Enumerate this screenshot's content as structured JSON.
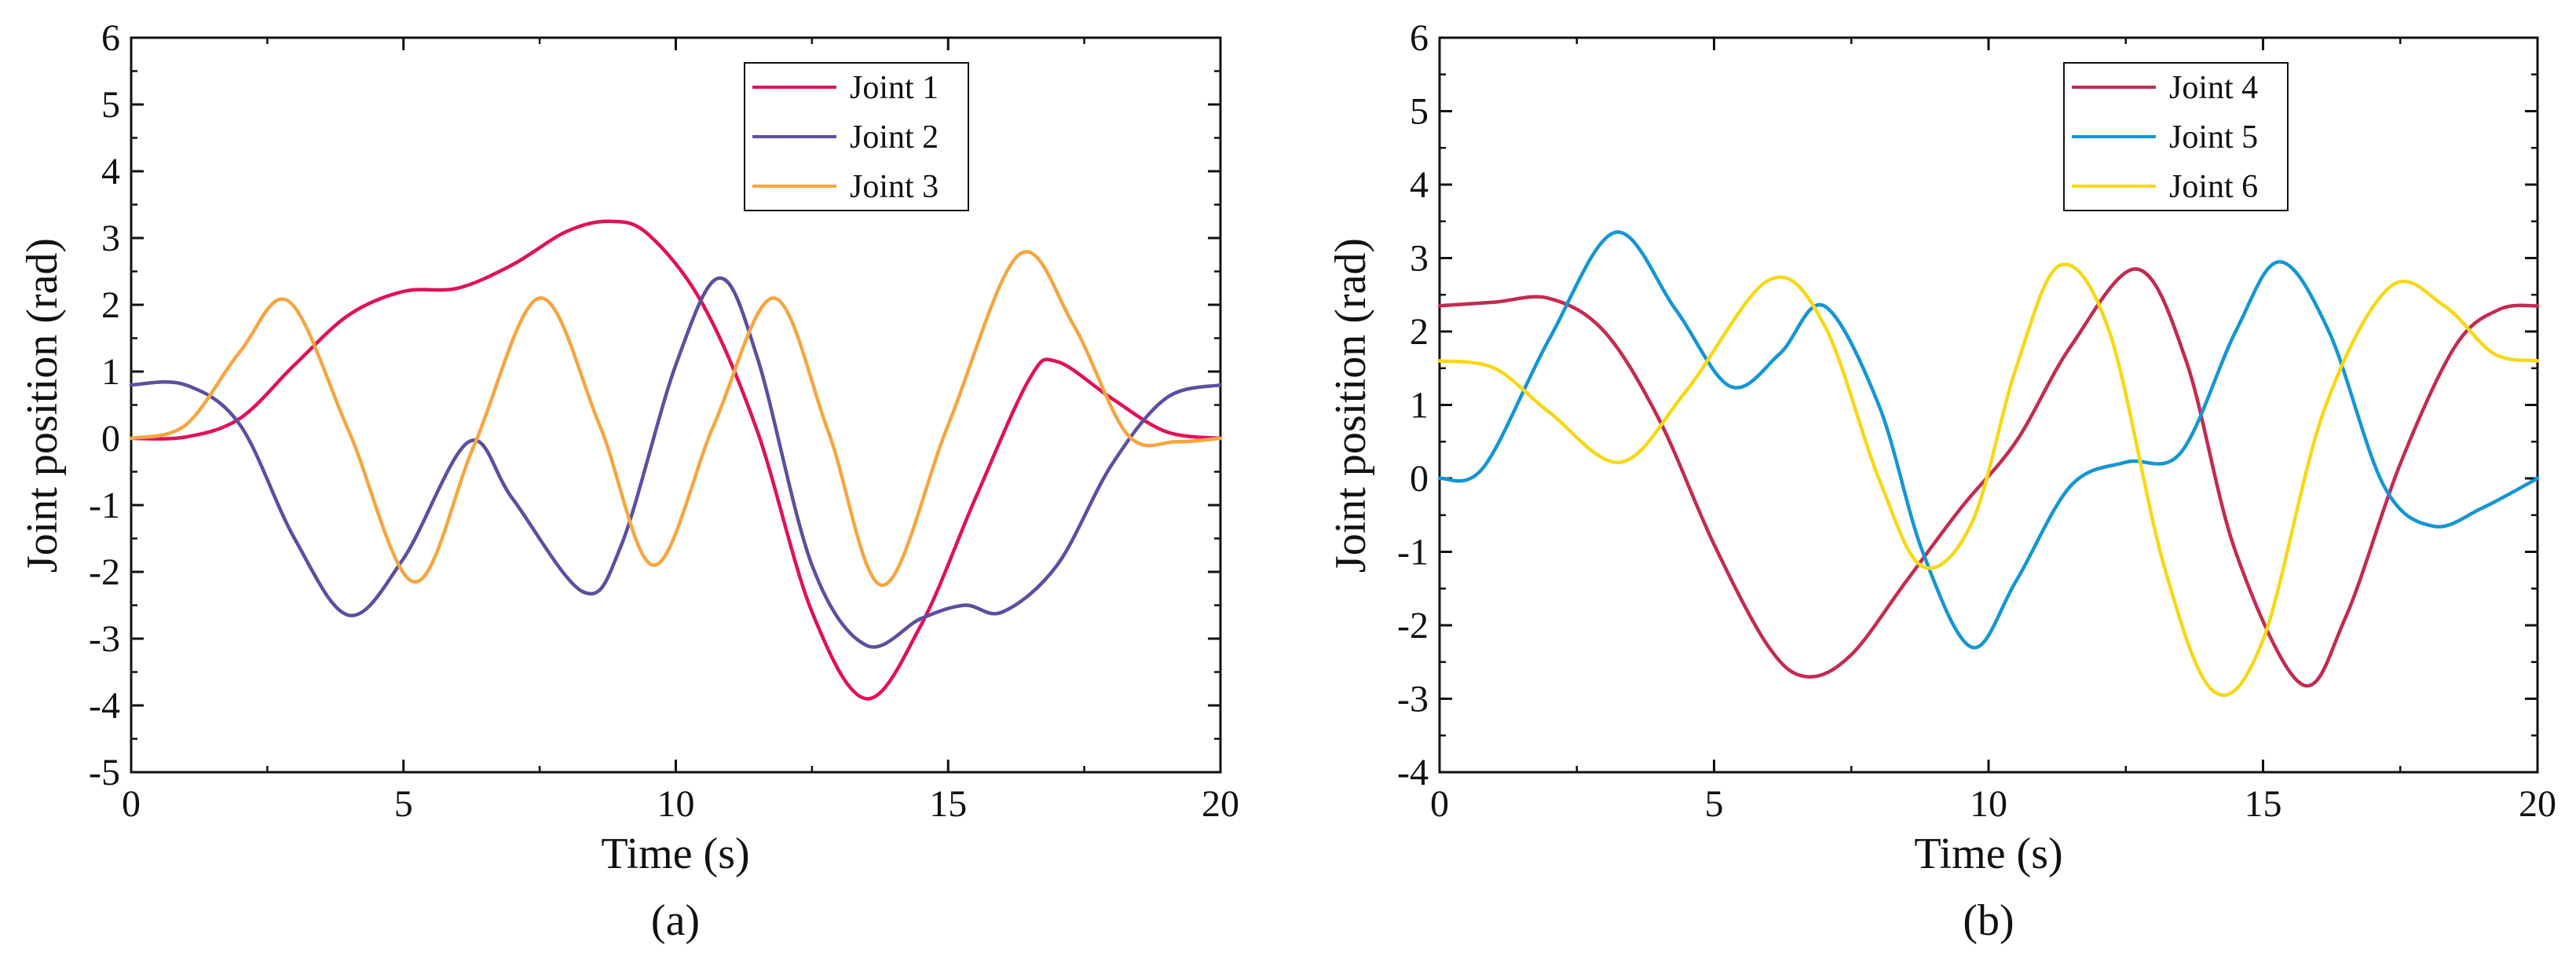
{
  "chart_data": [
    {
      "type": "line",
      "panel_label": "(a)",
      "xlabel": "Time (s)",
      "ylabel": "Joint position (rad)",
      "xlim": [
        0,
        20
      ],
      "ylim": [
        -5,
        6
      ],
      "xticks": [
        0,
        5,
        10,
        15,
        20
      ],
      "yticks": [
        -5,
        -4,
        -3,
        -2,
        -1,
        0,
        1,
        2,
        3,
        4,
        5,
        6
      ],
      "legend_position": "top-center",
      "series": [
        {
          "name": "Joint 1",
          "color": "#e0105a",
          "x": [
            0,
            1,
            2,
            3,
            4,
            5,
            6,
            7,
            8,
            8.8,
            9.5,
            10.5,
            11.5,
            12.5,
            13.5,
            14.5,
            15.5,
            16.5,
            17,
            18,
            19,
            20
          ],
          "y": [
            0,
            0.02,
            0.3,
            1.1,
            1.85,
            2.2,
            2.25,
            2.6,
            3.1,
            3.25,
            3.05,
            2.0,
            0.1,
            -2.6,
            -3.9,
            -2.8,
            -0.9,
            0.9,
            1.15,
            0.6,
            0.1,
            0
          ]
        },
        {
          "name": "Joint 2",
          "color": "#5c4fa0",
          "x": [
            0,
            1,
            2,
            3,
            4,
            5,
            6.2,
            7,
            8.3,
            9,
            10,
            10.8,
            11.5,
            12.5,
            13.5,
            14.5,
            15.3,
            16,
            17,
            18,
            19,
            20
          ],
          "y": [
            0.8,
            0.8,
            0.2,
            -1.5,
            -2.65,
            -1.8,
            -0.05,
            -0.9,
            -2.3,
            -1.6,
            1.1,
            2.4,
            1.2,
            -1.9,
            -3.1,
            -2.7,
            -2.5,
            -2.6,
            -1.9,
            -0.4,
            0.6,
            0.8
          ]
        },
        {
          "name": "Joint 3",
          "color": "#f5a640",
          "x": [
            0,
            1,
            2,
            2.9,
            4,
            5.2,
            6.3,
            7.5,
            8.6,
            9.6,
            10.7,
            11.8,
            12.8,
            13.8,
            15,
            16.3,
            17.3,
            18.3,
            19.2,
            20
          ],
          "y": [
            0,
            0.2,
            1.3,
            2.05,
            0.1,
            -2.15,
            -0.1,
            2.1,
            0.2,
            -1.9,
            0.2,
            2.1,
            0.1,
            -2.2,
            0.2,
            2.75,
            1.7,
            0.05,
            -0.05,
            0
          ]
        }
      ],
      "legend": [
        "Joint 1",
        "Joint 2",
        "Joint 3"
      ]
    },
    {
      "type": "line",
      "panel_label": "(b)",
      "xlabel": "Time (s)",
      "ylabel": "Joint position (rad)",
      "xlim": [
        0,
        20
      ],
      "ylim": [
        -4,
        6
      ],
      "xticks": [
        0,
        5,
        10,
        15,
        20
      ],
      "yticks": [
        -4,
        -3,
        -2,
        -1,
        0,
        1,
        2,
        3,
        4,
        5,
        6
      ],
      "legend_position": "top-center",
      "series": [
        {
          "name": "Joint 4",
          "color": "#c42a50",
          "x": [
            0,
            1,
            2,
            3,
            4,
            5,
            6,
            6.7,
            7.5,
            8.5,
            9.5,
            10.5,
            11.5,
            12.7,
            13.6,
            14.5,
            15.7,
            16.5,
            17.5,
            18.5,
            19.3,
            20
          ],
          "y": [
            2.35,
            2.4,
            2.45,
            2.0,
            0.8,
            -0.9,
            -2.3,
            -2.7,
            -2.4,
            -1.4,
            -0.4,
            0.5,
            1.8,
            2.85,
            1.6,
            -1.0,
            -2.8,
            -1.9,
            0.2,
            1.8,
            2.3,
            2.35
          ]
        },
        {
          "name": "Joint 5",
          "color": "#1496d4",
          "x": [
            0,
            0.8,
            2,
            3.2,
            4.3,
            5.3,
            6.2,
            7,
            8,
            8.8,
            9.7,
            10.5,
            11.5,
            12.5,
            13.5,
            14.5,
            15.3,
            16.2,
            17.2,
            18.1,
            19,
            20
          ],
          "y": [
            0,
            0.15,
            1.9,
            3.35,
            2.3,
            1.25,
            1.7,
            2.35,
            1.0,
            -1.0,
            -2.3,
            -1.4,
            -0.1,
            0.22,
            0.35,
            2.0,
            2.95,
            2.0,
            -0.1,
            -0.65,
            -0.4,
            0
          ]
        },
        {
          "name": "Joint 6",
          "color": "#f7d817",
          "x": [
            0,
            1,
            2,
            3.3,
            4.5,
            6,
            7,
            8,
            8.8,
            9.7,
            10.5,
            11.3,
            12.2,
            13.2,
            14.1,
            15,
            16.1,
            17.3,
            18.3,
            19.2,
            20
          ],
          "y": [
            1.6,
            1.5,
            0.9,
            0.22,
            1.2,
            2.7,
            2.1,
            0.0,
            -1.2,
            -0.6,
            1.5,
            2.9,
            2.0,
            -1.2,
            -2.9,
            -2.2,
            0.9,
            2.6,
            2.35,
            1.7,
            1.6
          ]
        }
      ],
      "legend": [
        "Joint 4",
        "Joint 5",
        "Joint 6"
      ]
    }
  ]
}
